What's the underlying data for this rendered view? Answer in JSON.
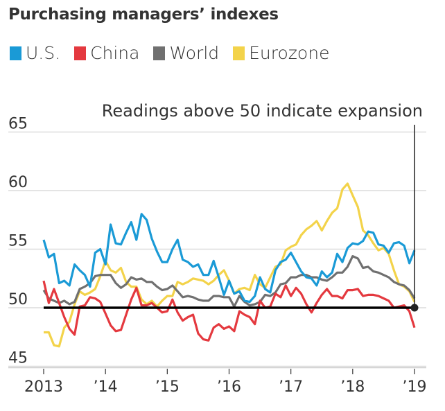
{
  "chart_data": {
    "type": "line",
    "title": "Purchasing managers’ indexes",
    "annotation": "Readings above 50 indicate expansion",
    "xlabel": "",
    "ylabel": "",
    "x_start": "2013-01",
    "x_end": "2019-01",
    "frequency": "monthly",
    "xticks": [
      "2013",
      "’14",
      "’15",
      "’16",
      "’17",
      "’18",
      "’19"
    ],
    "yticks": [
      45,
      50,
      55,
      60,
      65
    ],
    "ylim": [
      45,
      65
    ],
    "reference_line": 50,
    "grid": true,
    "legend_position": "top",
    "series": [
      {
        "name": "U.S.",
        "color": "#1a9ad6",
        "values": [
          55.8,
          54.3,
          54.6,
          52.1,
          52.3,
          51.9,
          53.7,
          53.2,
          52.8,
          51.8,
          54.7,
          55.0,
          53.7,
          57.1,
          55.5,
          55.4,
          56.4,
          57.3,
          55.8,
          58.0,
          57.5,
          55.9,
          54.8,
          53.9,
          53.9,
          55.0,
          55.8,
          54.1,
          53.9,
          53.5,
          53.7,
          52.8,
          52.8,
          54.0,
          52.6,
          51.1,
          52.3,
          51.2,
          51.4,
          50.6,
          50.5,
          51.0,
          52.6,
          51.6,
          51.3,
          53.2,
          53.9,
          54.1,
          54.7,
          53.9,
          53.1,
          52.6,
          52.5,
          51.9,
          53.1,
          52.6,
          53.0,
          54.6,
          53.9,
          55.1,
          55.5,
          55.4,
          55.7,
          56.5,
          56.4,
          55.4,
          55.3,
          54.7,
          55.5,
          55.6,
          55.3,
          53.8,
          54.9
        ]
      },
      {
        "name": "China",
        "color": "#e4393f",
        "values": [
          52.3,
          50.4,
          51.6,
          50.4,
          49.2,
          48.2,
          47.7,
          50.1,
          50.2,
          50.9,
          50.8,
          50.5,
          49.5,
          48.5,
          48.0,
          48.1,
          49.4,
          50.7,
          51.7,
          50.2,
          50.2,
          50.4,
          50.0,
          49.6,
          49.7,
          50.7,
          49.6,
          48.9,
          49.2,
          49.4,
          47.8,
          47.3,
          47.2,
          48.3,
          48.6,
          48.2,
          48.4,
          48.0,
          49.7,
          49.4,
          49.2,
          48.6,
          50.6,
          50.0,
          50.1,
          51.2,
          50.9,
          51.9,
          51.0,
          51.7,
          51.2,
          50.3,
          49.6,
          50.4,
          51.1,
          51.6,
          51.0,
          51.0,
          50.8,
          51.5,
          51.5,
          51.6,
          51.0,
          51.1,
          51.1,
          51.0,
          50.8,
          50.6,
          50.0,
          50.1,
          50.2,
          49.7,
          48.3
        ]
      },
      {
        "name": "World",
        "color": "#707070",
        "values": [
          51.5,
          50.8,
          50.6,
          50.4,
          50.6,
          50.3,
          50.5,
          51.6,
          51.8,
          52.1,
          52.7,
          52.8,
          52.8,
          52.8,
          52.1,
          51.7,
          52.0,
          52.6,
          52.4,
          52.5,
          52.2,
          52.2,
          51.8,
          51.5,
          51.6,
          51.9,
          51.4,
          50.9,
          51.0,
          50.9,
          50.7,
          50.6,
          50.6,
          51.0,
          51.0,
          50.9,
          50.9,
          50.1,
          51.0,
          50.5,
          50.2,
          50.3,
          50.5,
          51.1,
          51.0,
          51.3,
          52.0,
          52.1,
          52.6,
          52.6,
          52.8,
          52.8,
          52.6,
          52.6,
          52.4,
          52.3,
          52.6,
          53.0,
          53.0,
          53.5,
          54.4,
          54.2,
          53.4,
          53.5,
          53.1,
          53.0,
          52.8,
          52.6,
          52.2,
          52.0,
          51.9,
          51.5,
          50.8
        ]
      },
      {
        "name": "Eurozone",
        "color": "#f3d34a",
        "values": [
          47.9,
          47.9,
          46.8,
          46.7,
          48.3,
          48.8,
          50.3,
          51.4,
          51.1,
          51.3,
          51.6,
          52.7,
          54.0,
          53.2,
          53.0,
          53.4,
          52.2,
          51.8,
          51.8,
          50.7,
          50.3,
          50.6,
          50.1,
          50.6,
          51.0,
          51.0,
          52.2,
          52.0,
          52.2,
          52.5,
          52.4,
          52.3,
          52.0,
          52.3,
          52.8,
          53.2,
          52.3,
          51.2,
          51.6,
          51.7,
          51.5,
          52.8,
          52.0,
          51.7,
          52.6,
          53.5,
          53.7,
          54.9,
          55.2,
          55.4,
          56.2,
          56.7,
          57.0,
          57.4,
          56.6,
          57.4,
          58.1,
          58.5,
          60.1,
          60.6,
          59.6,
          58.6,
          56.6,
          56.2,
          55.5,
          54.9,
          55.1,
          54.6,
          53.2,
          52.0,
          51.8,
          51.4,
          50.5
        ]
      }
    ]
  }
}
